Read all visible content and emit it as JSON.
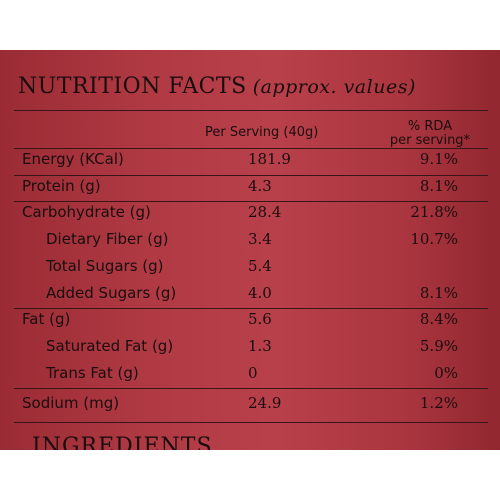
{
  "label": {
    "title": "NUTRITION FACTS",
    "subtitle": "(approx. values)",
    "col_per_serving": "Per Serving (40g)",
    "col_rda_line1": "% RDA",
    "col_rda_line2": "per serving*",
    "rows": [
      {
        "name": "Energy (KCal)",
        "value": "181.9",
        "rda": "9.1%"
      },
      {
        "name": "Protein (g)",
        "value": "4.3",
        "rda": "8.1%"
      },
      {
        "name": "Carbohydrate (g)",
        "value": "28.4",
        "rda": "21.8%"
      },
      {
        "name": "Dietary Fiber (g)",
        "value": "3.4",
        "rda": "10.7%"
      },
      {
        "name": "Total Sugars (g)",
        "value": "5.4",
        "rda": ""
      },
      {
        "name": "Added Sugars (g)",
        "value": "4.0",
        "rda": "8.1%"
      },
      {
        "name": "Fat (g)",
        "value": "5.6",
        "rda": "8.4%"
      },
      {
        "name": "Saturated Fat (g)",
        "value": "1.3",
        "rda": "5.9%"
      },
      {
        "name": "Trans Fat (g)",
        "value": "0",
        "rda": "0%"
      },
      {
        "name": "Sodium (mg)",
        "value": "24.9",
        "rda": "1.2%"
      }
    ],
    "next_section": "INGREDIENTS"
  },
  "colors": {
    "label_red": "#b03a44",
    "ink": "#1a0d0e"
  }
}
